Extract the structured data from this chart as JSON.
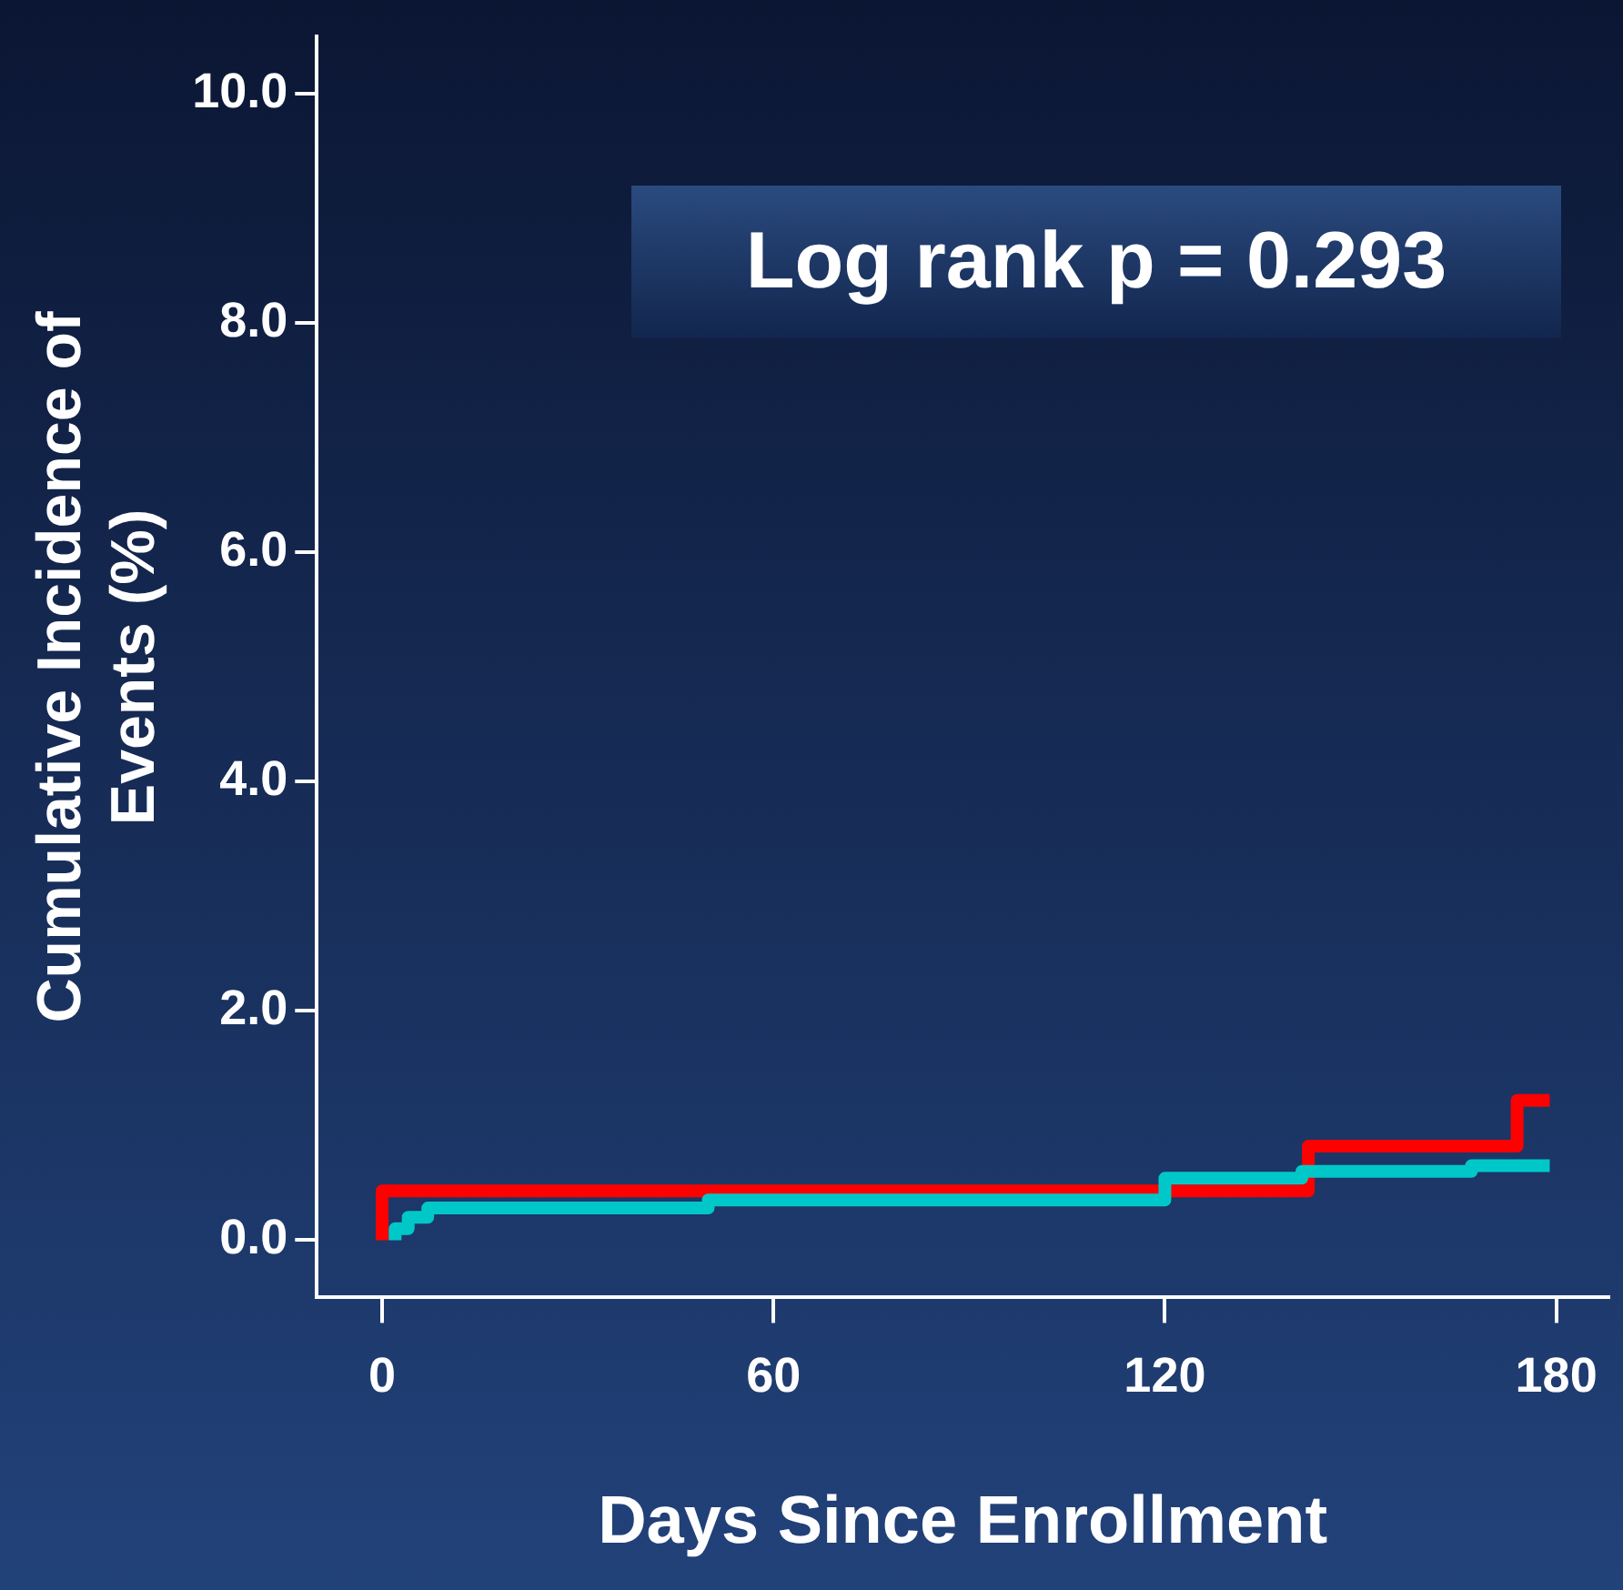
{
  "chart_data": {
    "type": "step",
    "xlabel": "Days Since Enrollment",
    "ylabel": "Cumulative Incidence of\nEvents (%)",
    "annotations": [
      "Log rank p = 0.293"
    ],
    "series": [
      {
        "color": "#00c8c8",
        "x": [
          2,
          2,
          4,
          7,
          50,
          120,
          141,
          167,
          179
        ],
        "values": [
          0,
          0.1,
          0.2,
          0.28,
          0.35,
          0.54,
          0.6,
          0.65,
          0.65
        ]
      },
      {
        "color": "#ff0000",
        "x": [
          0,
          0,
          142,
          174,
          179
        ],
        "values": [
          0,
          0.43,
          0.82,
          1.22,
          1.22
        ]
      }
    ],
    "xlim": [
      -10,
      188
    ],
    "xticks": [
      0,
      60,
      120,
      180
    ],
    "ylim": [
      -0.5,
      10.5
    ],
    "yticks": [
      {
        "value": 0,
        "label": "0.0"
      },
      {
        "value": 2,
        "label": "2.0"
      },
      {
        "value": 4,
        "label": "4.0"
      },
      {
        "value": 6,
        "label": "6.0"
      },
      {
        "value": 8,
        "label": "8.0"
      },
      {
        "value": 10,
        "label": "10.0"
      }
    ],
    "grid": false,
    "legend": false,
    "marker": "none",
    "line_style": "solid"
  }
}
